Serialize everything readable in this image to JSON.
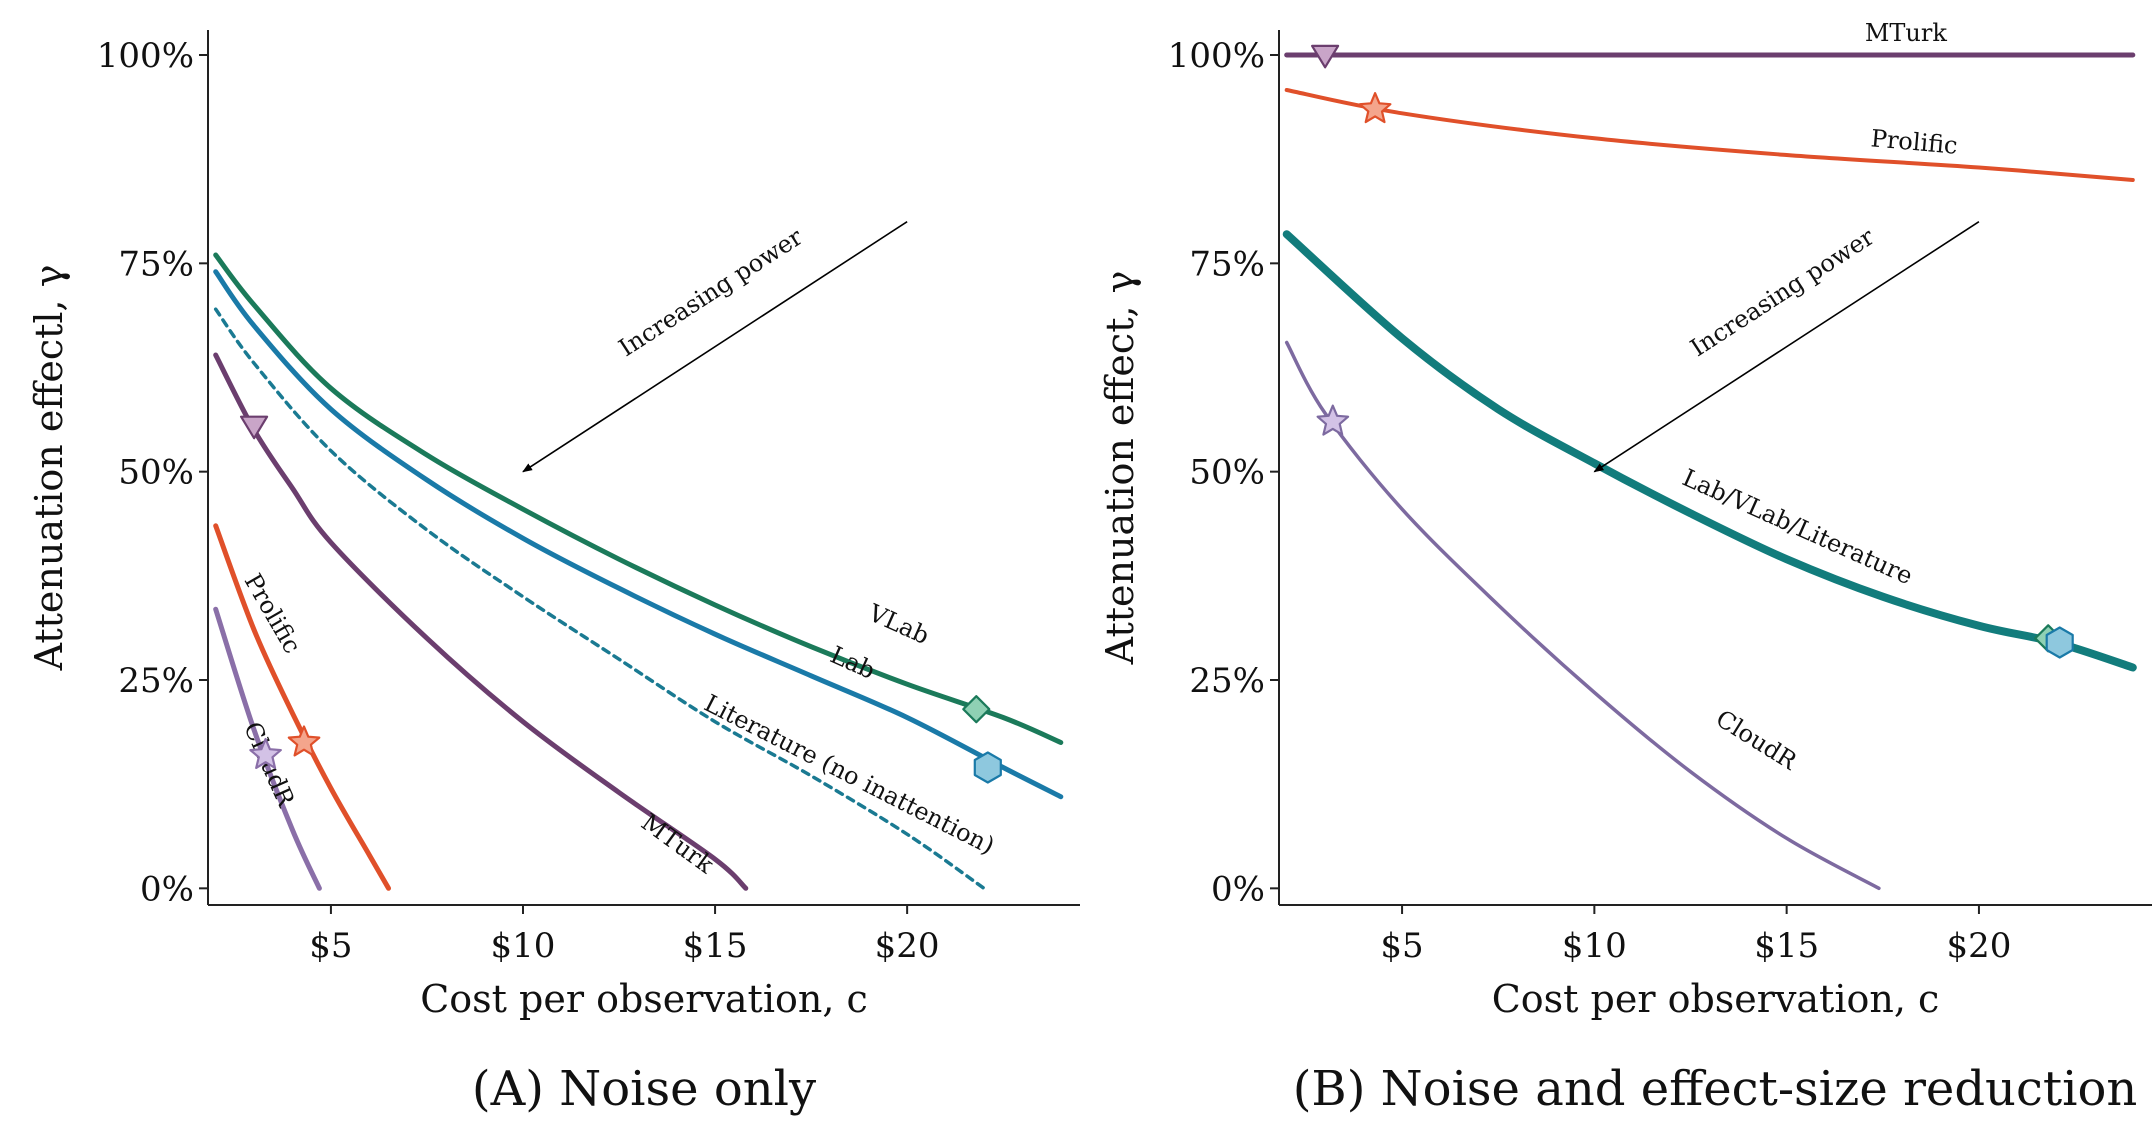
{
  "chart_data": [
    {
      "type": "line",
      "caption": "(A) Noise only",
      "xlabel": "Cost per observation, c",
      "ylabel": "Attenuation effectl, γ",
      "xlim": [
        1.8,
        24.5
      ],
      "ylim": [
        -2,
        103
      ],
      "xticks": [
        5,
        10,
        15,
        20
      ],
      "xtick_labels": [
        "$5",
        "$10",
        "$15",
        "$20"
      ],
      "yticks": [
        0,
        25,
        50,
        75,
        100
      ],
      "ytick_labels": [
        "0%",
        "25%",
        "50%",
        "75%",
        "100%"
      ],
      "series": [
        {
          "name": "VLab",
          "color": "#1b7a5a",
          "width": 5,
          "dash": "",
          "x": [
            2,
            3,
            5,
            7.5,
            10,
            12.5,
            15,
            17.5,
            20,
            22.5,
            24
          ],
          "y": [
            76,
            70,
            60,
            52,
            45.5,
            39.5,
            34,
            29,
            24.5,
            20.5,
            17.5
          ]
        },
        {
          "name": "Lab",
          "color": "#1a7aa8",
          "width": 5,
          "dash": "",
          "x": [
            2,
            3,
            5,
            7.5,
            10,
            12.5,
            15,
            17.5,
            20,
            22.5,
            24
          ],
          "y": [
            74,
            67.5,
            57.5,
            49,
            42,
            36,
            30.5,
            25.5,
            20.5,
            14.5,
            11
          ]
        },
        {
          "name": "Literature (no inattention)",
          "color": "#1a7a92",
          "width": 3.5,
          "dash": "7,6",
          "x": [
            2,
            3,
            5,
            7.5,
            10,
            12.5,
            15,
            17.5,
            20,
            22
          ],
          "y": [
            69.5,
            63,
            52.5,
            43,
            35,
            27.5,
            20,
            13.5,
            6.5,
            0
          ]
        },
        {
          "name": "MTurk",
          "color": "#6b3e6e",
          "width": 5,
          "dash": "",
          "x": [
            2,
            3,
            4,
            5,
            7.5,
            10,
            12.5,
            15,
            15.8
          ],
          "y": [
            64,
            55,
            48,
            41.5,
            30,
            20,
            11.5,
            3.5,
            0
          ]
        },
        {
          "name": "Prolific",
          "color": "#e0502a",
          "width": 5,
          "dash": "",
          "x": [
            2,
            3,
            4,
            5,
            6,
            6.5
          ],
          "y": [
            43.5,
            31,
            21,
            12,
            4,
            0
          ]
        },
        {
          "name": "CloudR",
          "color": "#8a6fa8",
          "width": 5,
          "dash": "",
          "x": [
            2,
            3,
            4,
            4.7
          ],
          "y": [
            33.5,
            19,
            7,
            0
          ]
        }
      ],
      "markers": [
        {
          "series": "VLab",
          "shape": "diamond",
          "x": 21.8,
          "y": 21.5,
          "fill": "#8fd1b4",
          "stroke": "#1b7a5a"
        },
        {
          "series": "Lab",
          "shape": "hexagon",
          "x": 22.1,
          "y": 14.5,
          "fill": "#8ec8de",
          "stroke": "#1a7aa8"
        },
        {
          "series": "MTurk",
          "shape": "triangle-down",
          "x": 3.0,
          "y": 55.5,
          "fill": "#c9a5c8",
          "stroke": "#6b3e6e"
        },
        {
          "series": "Prolific",
          "shape": "star",
          "x": 4.3,
          "y": 17.5,
          "fill": "#f4a58c",
          "stroke": "#e0502a"
        },
        {
          "series": "CloudR",
          "shape": "star",
          "x": 3.3,
          "y": 16.0,
          "fill": "#d3c2e6",
          "stroke": "#8a6fa8"
        }
      ],
      "series_labels": [
        {
          "text": "VLab",
          "x": 19.7,
          "y": 30.8,
          "angle": 24
        },
        {
          "text": "Lab",
          "x": 18.5,
          "y": 26.2,
          "angle": 24
        },
        {
          "text": "Literature (no inattention)",
          "x": 18.4,
          "y": 12.8,
          "angle": 27
        },
        {
          "text": "MTurk",
          "x": 13.9,
          "y": 4.6,
          "angle": 36
        },
        {
          "text": "Prolific",
          "x": 3.3,
          "y": 32.5,
          "angle": 60
        },
        {
          "text": "CloudR",
          "x": 3.2,
          "y": 14.5,
          "angle": 66
        }
      ],
      "annotation": {
        "text": "Increasing power",
        "from": [
          20,
          80
        ],
        "to": [
          10,
          50
        ],
        "label_at": [
          15.0,
          70.7
        ],
        "angle": -33
      }
    },
    {
      "type": "line",
      "caption": "(B) Noise and effect-size reduction",
      "xlabel": "Cost per observation, c",
      "ylabel": "Attenuation effect, γ",
      "xlim": [
        1.8,
        24.5
      ],
      "ylim": [
        -2,
        103
      ],
      "xticks": [
        5,
        10,
        15,
        20
      ],
      "xtick_labels": [
        "$5",
        "$10",
        "$15",
        "$20"
      ],
      "yticks": [
        0,
        25,
        50,
        75,
        100
      ],
      "ytick_labels": [
        "0%",
        "25%",
        "50%",
        "75%",
        "100%"
      ],
      "series": [
        {
          "name": "MTurk",
          "color": "#6b3e6e",
          "width": 5,
          "dash": "",
          "x": [
            2,
            24
          ],
          "y": [
            100,
            100
          ]
        },
        {
          "name": "Prolific",
          "color": "#e0502a",
          "width": 4,
          "dash": "",
          "x": [
            2,
            5,
            10,
            15,
            20,
            24
          ],
          "y": [
            95.8,
            93,
            90,
            88,
            86.5,
            85
          ]
        },
        {
          "name": "Lab/VLab/Literature",
          "color": "#127c7c",
          "width": 8,
          "dash": "",
          "x": [
            2,
            5,
            7.5,
            10,
            12.5,
            15,
            17.5,
            20,
            22,
            24
          ],
          "y": [
            78.5,
            66,
            57.5,
            51,
            45,
            39.5,
            35,
            31.5,
            29.5,
            26.5
          ]
        },
        {
          "name": "CloudR",
          "color": "#7d6aa0",
          "width": 3.5,
          "dash": "",
          "x": [
            2,
            3,
            5,
            7.5,
            10,
            12.5,
            15,
            17.4
          ],
          "y": [
            65.5,
            57,
            45.5,
            34,
            23.5,
            14,
            6,
            0
          ]
        }
      ],
      "markers": [
        {
          "series": "MTurk",
          "shape": "triangle-down",
          "x": 3.0,
          "y": 100,
          "fill": "#c9a5c8",
          "stroke": "#6b3e6e"
        },
        {
          "series": "Prolific",
          "shape": "star",
          "x": 4.3,
          "y": 93.5,
          "fill": "#f4a58c",
          "stroke": "#e0502a"
        },
        {
          "series": "Lab/VLab/Literature",
          "shape": "diamond",
          "x": 21.8,
          "y": 30,
          "fill": "#8fd1b4",
          "stroke": "#1b7a5a"
        },
        {
          "series": "Lab/VLab/Literature",
          "shape": "hexagon",
          "x": 22.1,
          "y": 29.5,
          "fill": "#8ec8de",
          "stroke": "#1a7aa8"
        },
        {
          "series": "CloudR",
          "shape": "star",
          "x": 3.2,
          "y": 56,
          "fill": "#d3c2e6",
          "stroke": "#7d6aa0"
        }
      ],
      "series_labels": [
        {
          "text": "MTurk",
          "x": 18.1,
          "y": 101.7,
          "angle": 0
        },
        {
          "text": "Prolific",
          "x": 18.3,
          "y": 88.6,
          "angle": 5
        },
        {
          "text": "Lab/VLab/Literature",
          "x": 15.2,
          "y": 42.5,
          "angle": 24
        },
        {
          "text": "CloudR",
          "x": 14.1,
          "y": 17.0,
          "angle": 32
        }
      ],
      "annotation": {
        "text": "Increasing power",
        "from": [
          20,
          80
        ],
        "to": [
          10,
          50
        ],
        "label_at": [
          15.0,
          70.7
        ],
        "angle": -33
      }
    }
  ]
}
